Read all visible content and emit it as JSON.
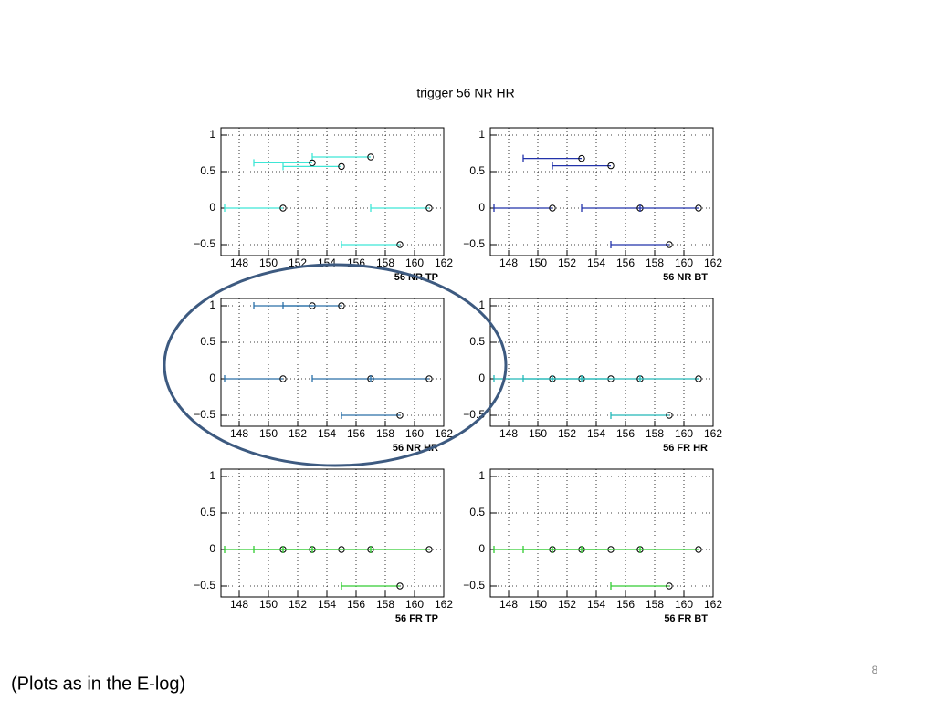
{
  "title": "trigger 56 NR HR",
  "caption": "(Plots as in the E-log)",
  "page_number": 8,
  "chart_data": [
    {
      "type": "scatter",
      "xlabel": "56 NR TP",
      "xlim": [
        146.75,
        162
      ],
      "ylim": [
        -0.65,
        1.1
      ],
      "xticks": [
        148,
        150,
        152,
        154,
        156,
        158,
        160,
        162
      ],
      "yticks": [
        1,
        0.5,
        0,
        {
          "value": -0.5,
          "label": "−0.5"
        }
      ],
      "grid": true,
      "series": [
        {
          "color": "#3ee6d6",
          "x": [
            157,
            153,
            155,
            151,
            161,
            159
          ],
          "x_low": [
            153,
            149,
            151,
            147,
            157,
            155
          ],
          "y": [
            0.7,
            0.62,
            0.57,
            0,
            0,
            -0.5
          ]
        }
      ]
    },
    {
      "type": "scatter",
      "xlabel": "56 NR BT",
      "xlim": [
        146.75,
        162
      ],
      "ylim": [
        -0.65,
        1.1
      ],
      "xticks": [
        148,
        150,
        152,
        154,
        156,
        158,
        160,
        162
      ],
      "yticks": [
        1,
        0.5,
        0,
        {
          "value": -0.5,
          "label": "−0.5"
        }
      ],
      "grid": true,
      "series": [
        {
          "color": "#2233aa",
          "x": [
            153,
            155,
            151,
            157,
            161,
            159
          ],
          "x_low": [
            149,
            151,
            147,
            153,
            157,
            155
          ],
          "y": [
            0.68,
            0.58,
            0,
            0,
            0,
            -0.5
          ]
        }
      ]
    },
    {
      "type": "scatter",
      "xlabel": "56 NR HR",
      "xlim": [
        146.75,
        162
      ],
      "ylim": [
        -0.65,
        1.1
      ],
      "xticks": [
        148,
        150,
        152,
        154,
        156,
        158,
        160,
        162
      ],
      "yticks": [
        1,
        0.5,
        0,
        {
          "value": -0.5,
          "label": "−0.5"
        }
      ],
      "grid": true,
      "series": [
        {
          "color": "#2a6fa8",
          "x": [
            153,
            155,
            151,
            157,
            161,
            159
          ],
          "x_low": [
            149,
            151,
            147,
            153,
            157,
            155
          ],
          "y": [
            1,
            1,
            0,
            0,
            0,
            -0.5
          ]
        }
      ]
    },
    {
      "type": "scatter",
      "xlabel": "56 FR HR",
      "xlim": [
        146.75,
        162
      ],
      "ylim": [
        -0.65,
        1.1
      ],
      "xticks": [
        148,
        150,
        152,
        154,
        156,
        158,
        160,
        162
      ],
      "yticks": [
        1,
        0.5,
        0,
        {
          "value": -0.5,
          "label": "−0.5"
        }
      ],
      "grid": true,
      "series": [
        {
          "color": "#22b8b8",
          "x": [
            151,
            153,
            155,
            157,
            161,
            159
          ],
          "x_low": [
            147,
            149,
            151,
            153,
            157,
            155
          ],
          "y": [
            0,
            0,
            0,
            0,
            0,
            -0.5
          ]
        }
      ]
    },
    {
      "type": "scatter",
      "xlabel": "56 FR TP",
      "xlim": [
        146.75,
        162
      ],
      "ylim": [
        -0.65,
        1.1
      ],
      "xticks": [
        148,
        150,
        152,
        154,
        156,
        158,
        160,
        162
      ],
      "yticks": [
        1,
        0.5,
        0,
        {
          "value": -0.5,
          "label": "−0.5"
        }
      ],
      "grid": true,
      "series": [
        {
          "color": "#33cc33",
          "x": [
            151,
            153,
            155,
            157,
            161,
            159
          ],
          "x_low": [
            147,
            149,
            151,
            153,
            157,
            155
          ],
          "y": [
            0,
            0,
            0,
            0,
            0,
            -0.5
          ]
        }
      ]
    },
    {
      "type": "scatter",
      "xlabel": "56 FR BT",
      "xlim": [
        146.75,
        162
      ],
      "ylim": [
        -0.65,
        1.1
      ],
      "xticks": [
        148,
        150,
        152,
        154,
        156,
        158,
        160,
        162
      ],
      "yticks": [
        1,
        0.5,
        0,
        {
          "value": -0.5,
          "label": "−0.5"
        }
      ],
      "grid": true,
      "series": [
        {
          "color": "#33cc33",
          "x": [
            151,
            153,
            155,
            157,
            161,
            159
          ],
          "x_low": [
            147,
            149,
            151,
            153,
            157,
            155
          ],
          "y": [
            0,
            0,
            0,
            0,
            0,
            -0.5
          ]
        }
      ]
    }
  ]
}
